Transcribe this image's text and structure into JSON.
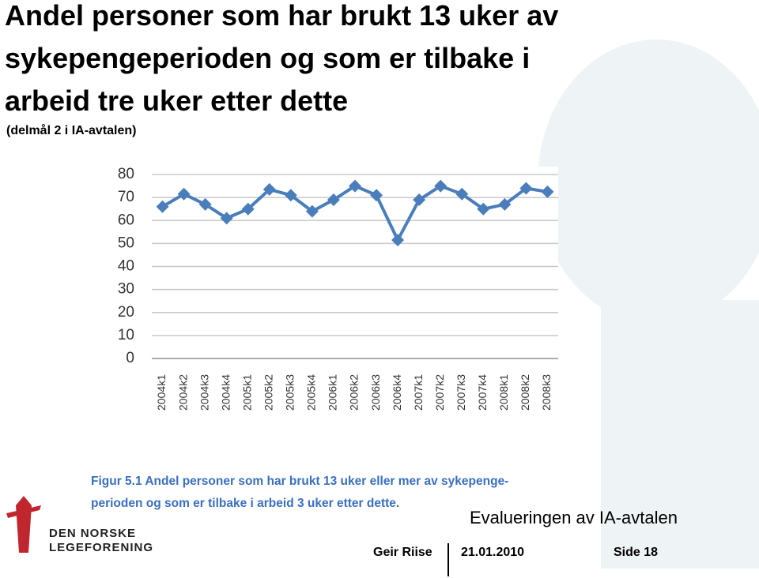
{
  "slide": {
    "title_lines": [
      "Andel personer som har brukt 13 uker av",
      "sykepengeperioden og som er tilbake i",
      "arbeid tre uker etter dette"
    ],
    "subtitle": "(delmål 2 i IA-avtalen)",
    "caption_lines": [
      "Figur 5.1 Andel personer som har brukt 13 uker eller mer av sykepenge-",
      "perioden og som er tilbake i arbeid 3 uker etter dette."
    ],
    "logo_lines": [
      "DEN NORSKE",
      "LEGEFORENING"
    ],
    "report": "Evalueringen av IA-avtalen",
    "author": "Geir Riise",
    "date": "21.01.2010",
    "page": "Side 18"
  },
  "chart_data": {
    "type": "line",
    "categories": [
      "2004k1",
      "2004k2",
      "2004k3",
      "2004k4",
      "2005k1",
      "2005k2",
      "2005k3",
      "2005k4",
      "2006k1",
      "2006k2",
      "2006k3",
      "2006k4",
      "2007k1",
      "2007k2",
      "2007k3",
      "2007k4",
      "2008k1",
      "2008k2",
      "2008k3"
    ],
    "values": [
      66,
      71.5,
      67,
      61,
      65,
      73.5,
      71,
      64,
      69,
      75,
      71,
      51.5,
      69,
      75,
      71.5,
      65,
      67,
      74,
      72.5
    ],
    "color": "#4a7ebb",
    "ylim": [
      0,
      80
    ],
    "yticks": [
      0,
      10,
      20,
      30,
      40,
      50,
      60,
      70,
      80
    ],
    "grid": true
  }
}
